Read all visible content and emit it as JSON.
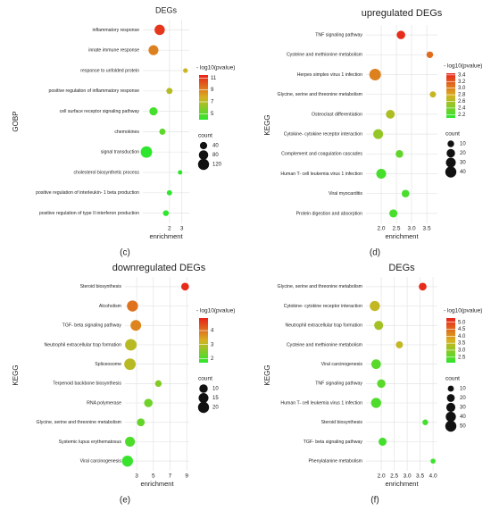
{
  "chart_data": [
    {
      "type": "scatter",
      "title": "DEGs",
      "caption": "(c)",
      "x_label": "enrichment",
      "y_label": "GOBP",
      "categories": [
        "inflammatory response",
        "innate immune response",
        "response to unfolded protein",
        "positive regulation of inflammatory response",
        "cell surface receptor signaling pathway",
        "chemokines",
        "signal transduction",
        "cholesterol biosynthetic process",
        "positive regulation of interleukin- 1 beta production",
        "positive regulation of type II interferon production"
      ],
      "x": [
        1.21,
        0.71,
        3.29,
        2.0,
        0.71,
        1.43,
        0.14,
        2.86,
        2.0,
        1.71
      ],
      "color_values": [
        11,
        9,
        7.5,
        7,
        4.5,
        5,
        4,
        4,
        4,
        4
      ],
      "size_values": [
        100,
        90,
        10,
        25,
        55,
        25,
        130,
        8,
        15,
        20
      ],
      "xlim": [
        -0.15,
        3.6
      ],
      "xticks": [
        2,
        3
      ],
      "color_legend_title": "- log10(pvalue)",
      "clim": [
        4,
        11.5
      ],
      "color_ticks": [
        5,
        7,
        9,
        11
      ],
      "size_legend_title": "count",
      "size_ticks": [
        40,
        80,
        120
      ],
      "color_scale": [
        "#2ee62e",
        "#d8b020",
        "#e8231a"
      ],
      "grid": true
    },
    {
      "type": "scatter",
      "title": "upregulated DEGs",
      "caption": "(d)",
      "x_label": "enrichment",
      "y_label": "KEGG",
      "categories": [
        "TNF signaling pathway",
        "Cysteine and methionine metabolism",
        "Herpes simplex virus 1 infection",
        "Glycine, serine and threonine metabolism",
        "Osteoclast differentiation",
        "Cytokine- cytokine receptor interaction",
        "Complement and coagulation cascades",
        "Human T- cell leukemia virus 1 infection",
        "Viral myocarditis",
        "Protein digestion and absorption"
      ],
      "x": [
        2.65,
        3.6,
        1.8,
        3.7,
        2.3,
        1.9,
        2.6,
        2.0,
        2.8,
        2.4
      ],
      "color_values": [
        3.4,
        3.1,
        3.0,
        2.7,
        2.6,
        2.5,
        2.3,
        2.2,
        2.2,
        2.2
      ],
      "size_values": [
        20,
        10,
        45,
        8,
        22,
        30,
        15,
        30,
        15,
        18
      ],
      "xlim": [
        1.5,
        3.85
      ],
      "xticks": [
        {
          "value": 2,
          "label": "2.0"
        },
        2.5,
        {
          "value": 3,
          "label": "3.0"
        },
        3.5
      ],
      "color_legend_title": "- log10(pvalue)",
      "clim": [
        2.1,
        3.45
      ],
      "color_ticks": [
        2.2,
        2.4,
        2.6,
        2.8,
        {
          "value": 3,
          "label": "3.0"
        },
        3.2,
        3.4
      ],
      "size_legend_title": "count",
      "size_ticks": [
        10,
        20,
        30,
        40
      ],
      "color_scale": [
        "#2ee62e",
        "#d8b020",
        "#e8231a"
      ],
      "grid": true
    },
    {
      "type": "scatter",
      "title": "downregulated DEGs",
      "caption": "(e)",
      "x_label": "enrichment",
      "y_label": "KEGG",
      "categories": [
        "Steroid biosynthesis",
        "Alcoholism",
        "TGF- beta signaling pathway",
        "Neutrophil extracellular trap formation",
        "Spliceosome",
        "Terpenoid backbone biosynthesis",
        "RNA polymerase",
        "Glycine, serine and threonine metabolism",
        "Systemic lupus erythematosus",
        "Viral carcinogenesis"
      ],
      "x": [
        8.8,
        2.5,
        2.9,
        2.3,
        2.2,
        5.6,
        4.4,
        3.5,
        2.2,
        1.9
      ],
      "color_values": [
        4.8,
        4.0,
        3.8,
        3.0,
        3.0,
        2.5,
        2.3,
        2.2,
        2.0,
        1.8
      ],
      "size_values": [
        8,
        20,
        18,
        22,
        22,
        5,
        10,
        8,
        15,
        20
      ],
      "xlim": [
        1.6,
        9.3
      ],
      "xticks": [
        3,
        5,
        7,
        9
      ],
      "color_legend_title": "- log10(pvalue)",
      "clim": [
        1.7,
        4.9
      ],
      "color_ticks": [
        2,
        3,
        4
      ],
      "size_legend_title": "count",
      "size_ticks": [
        10,
        15,
        20
      ],
      "color_scale": [
        "#2ee62e",
        "#d8b020",
        "#e8231a"
      ],
      "grid": true
    },
    {
      "type": "scatter",
      "title": "DEGs",
      "caption": "(f)",
      "x_label": "enrichment",
      "y_label": "KEGG",
      "categories": [
        "Glycine, serine and threonine metabolism",
        "Cytokine- cytokine receptor interaction",
        "Neutrophil extracellular trap formation",
        "Cysteine and methionine metabolism",
        "Viral carcinogenesis",
        "TNF signaling pathway",
        "Human T- cell leukemia virus 1 infection",
        "Steroid biosynthesis",
        "TGF- beta signaling pathway",
        "Phenylalanine metabolism"
      ],
      "x": [
        3.6,
        1.75,
        1.9,
        2.7,
        1.8,
        2.0,
        1.8,
        3.7,
        2.05,
        4.0
      ],
      "color_values": [
        5.2,
        3.5,
        3.2,
        3.5,
        2.5,
        2.5,
        2.4,
        2.3,
        2.3,
        2.2
      ],
      "size_values": [
        20,
        40,
        30,
        15,
        35,
        25,
        40,
        8,
        22,
        5
      ],
      "xlim": [
        1.41,
        4.17
      ],
      "xticks": [
        {
          "value": 2,
          "label": "2.0"
        },
        2.5,
        {
          "value": 3,
          "label": "3.0"
        },
        3.5,
        {
          "value": 4,
          "label": "4.0"
        }
      ],
      "color_legend_title": "- log10(pvalue)",
      "clim": [
        2.1,
        5.3
      ],
      "color_ticks": [
        2.5,
        {
          "value": 3,
          "label": "3.0"
        },
        3.5,
        {
          "value": 4,
          "label": "4.0"
        },
        4.5,
        {
          "value": 5,
          "label": "5.0"
        }
      ],
      "size_legend_title": "count",
      "size_ticks": [
        10,
        20,
        30,
        40,
        50
      ],
      "color_scale": [
        "#2ee62e",
        "#d8b020",
        "#e8231a"
      ],
      "grid": true
    }
  ]
}
